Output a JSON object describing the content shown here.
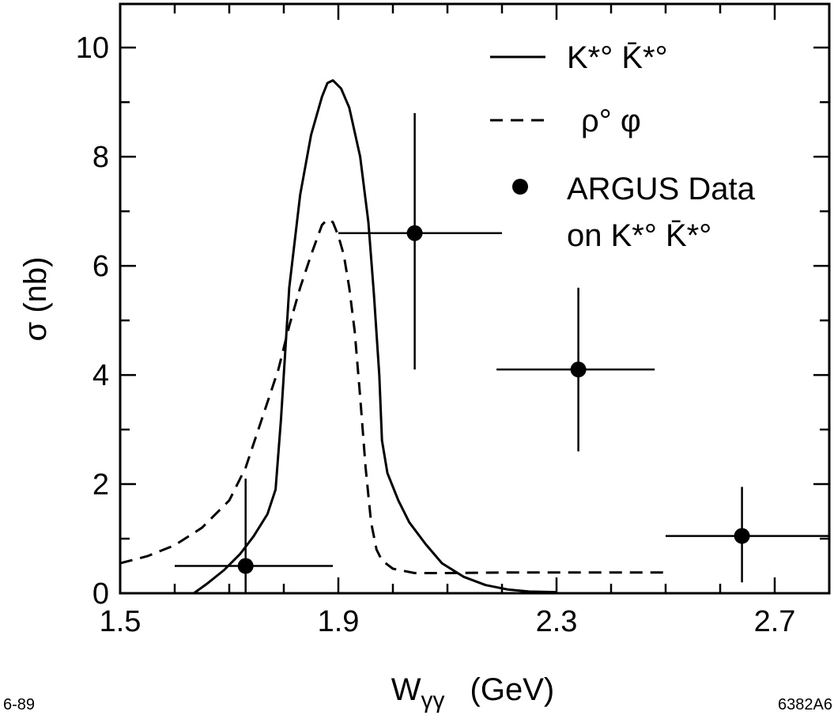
{
  "chart_data": {
    "type": "line",
    "xlabel_main": "W",
    "xlabel_sub": "γγ",
    "xlabel_unit": "(GeV)",
    "ylabel": "σ (nb)",
    "xlim": [
      1.5,
      2.8
    ],
    "ylim": [
      0,
      10.8
    ],
    "x_ticks": [
      1.5,
      1.9,
      2.3,
      2.7
    ],
    "x_tick_labels": [
      "1.5",
      "1.9",
      "2.3",
      "2.7"
    ],
    "y_ticks": [
      0,
      2,
      4,
      6,
      8,
      10
    ],
    "y_tick_labels": [
      "0",
      "2",
      "4",
      "6",
      "8",
      "10"
    ],
    "legend": {
      "placement": "top-right",
      "entries": [
        {
          "style": "solid",
          "label": "K*° K̄*°"
        },
        {
          "style": "dashed",
          "label": "ρ° φ"
        },
        {
          "style": "dot",
          "label_line1": "ARGUS Data",
          "label_line2": "on K*° K̄*°"
        }
      ]
    },
    "series": [
      {
        "style": "solid",
        "x": [
          1.635,
          1.66,
          1.69,
          1.72,
          1.745,
          1.77,
          1.785,
          1.795,
          1.81,
          1.83,
          1.85,
          1.87,
          1.88,
          1.89,
          1.905,
          1.92,
          1.94,
          1.955,
          1.965,
          1.975,
          1.98,
          1.99,
          2.01,
          2.03,
          2.06,
          2.09,
          2.13,
          2.17,
          2.21,
          2.25,
          2.3
        ],
        "y": [
          0.0,
          0.18,
          0.42,
          0.72,
          1.05,
          1.45,
          1.9,
          3.2,
          5.6,
          7.3,
          8.4,
          9.1,
          9.35,
          9.4,
          9.25,
          8.9,
          8.0,
          6.8,
          5.5,
          4.0,
          2.8,
          2.2,
          1.7,
          1.3,
          0.9,
          0.55,
          0.3,
          0.15,
          0.07,
          0.03,
          0.02
        ]
      },
      {
        "style": "dashed",
        "x": [
          1.5,
          1.55,
          1.6,
          1.65,
          1.7,
          1.73,
          1.76,
          1.79,
          1.81,
          1.83,
          1.85,
          1.87,
          1.88,
          1.89,
          1.9,
          1.91,
          1.92,
          1.93,
          1.94,
          1.95,
          1.96,
          1.97,
          1.98,
          2.0,
          2.04,
          2.1,
          2.2,
          2.3,
          2.4,
          2.5
        ],
        "y": [
          0.55,
          0.68,
          0.88,
          1.2,
          1.7,
          2.3,
          3.2,
          4.1,
          4.9,
          5.6,
          6.2,
          6.75,
          6.85,
          6.8,
          6.55,
          6.2,
          5.6,
          4.8,
          3.6,
          2.3,
          1.3,
          0.8,
          0.6,
          0.45,
          0.37,
          0.37,
          0.38,
          0.38,
          0.38,
          0.38
        ]
      }
    ],
    "data_points": [
      {
        "x": 1.73,
        "y": 0.5,
        "xerr": [
          1.6,
          1.89
        ],
        "yerr": [
          0.0,
          2.1
        ]
      },
      {
        "x": 2.04,
        "y": 6.6,
        "xerr": [
          1.9,
          2.2
        ],
        "yerr": [
          4.1,
          8.8
        ]
      },
      {
        "x": 2.34,
        "y": 4.1,
        "xerr": [
          2.19,
          2.48
        ],
        "yerr": [
          2.6,
          5.6
        ]
      },
      {
        "x": 2.64,
        "y": 1.05,
        "xerr": [
          2.5,
          2.8
        ],
        "yerr": [
          0.2,
          1.95
        ]
      }
    ]
  },
  "footer": {
    "left_note": "6-89",
    "right_note": "6382A6"
  }
}
